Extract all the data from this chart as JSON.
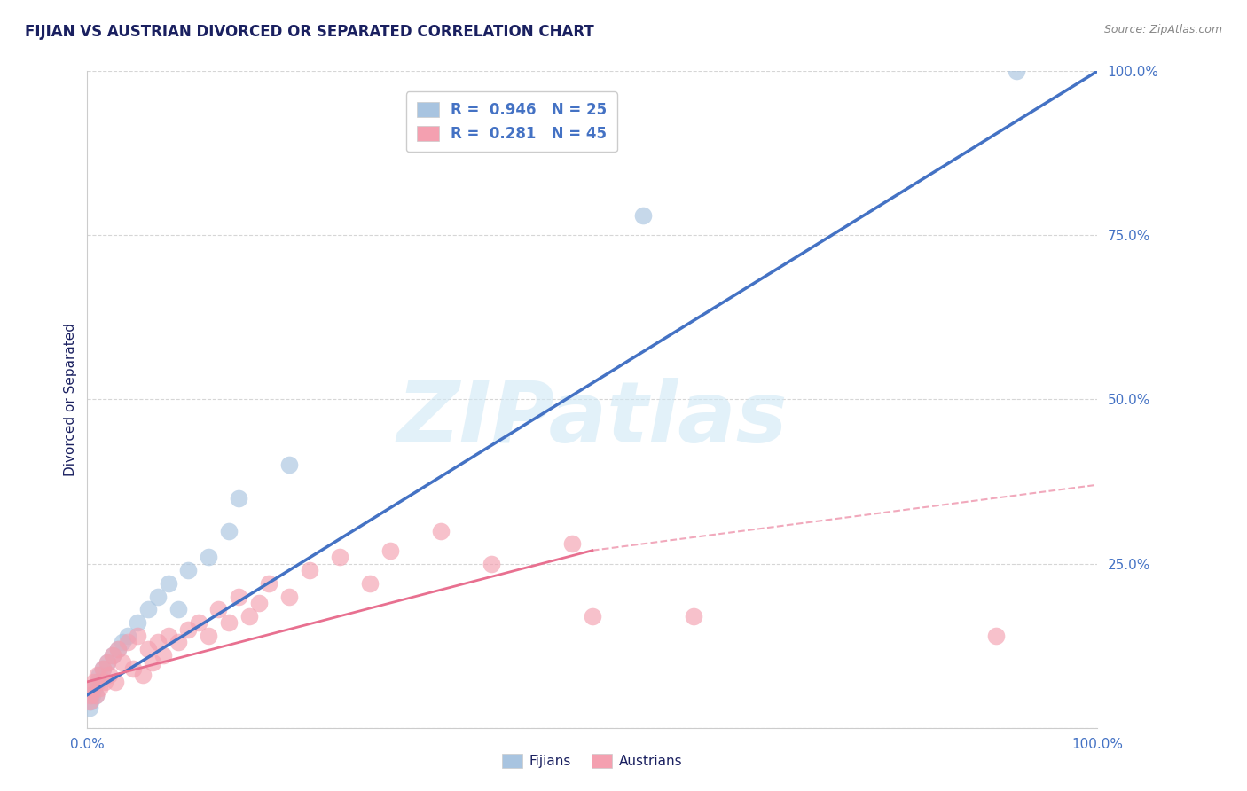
{
  "title": "FIJIAN VS AUSTRIAN DIVORCED OR SEPARATED CORRELATION CHART",
  "source_text": "Source: ZipAtlas.com",
  "ylabel": "Divorced or Separated",
  "fijian_R": 0.946,
  "fijian_N": 25,
  "austrian_R": 0.281,
  "austrian_N": 45,
  "fijian_color": "#a8c4e0",
  "austrian_color": "#f4a0b0",
  "fijian_line_color": "#4472c4",
  "austrian_line_color": "#e87090",
  "background_color": "#ffffff",
  "grid_color": "#cccccc",
  "title_color": "#1a2060",
  "axis_label_color": "#1a2060",
  "tick_label_color": "#4472c4",
  "watermark_color": "#d0e8f5",
  "watermark_text": "ZIPatlas",
  "fijian_points_x": [
    0.2,
    0.3,
    0.5,
    0.7,
    0.8,
    1.0,
    1.2,
    1.5,
    2.0,
    2.5,
    3.0,
    3.5,
    4.0,
    5.0,
    6.0,
    7.0,
    8.0,
    9.0,
    10.0,
    12.0,
    14.0,
    15.0,
    20.0,
    55.0,
    92.0
  ],
  "fijian_points_y": [
    3.0,
    4.0,
    5.0,
    6.0,
    5.0,
    7.0,
    8.0,
    9.0,
    10.0,
    11.0,
    12.0,
    13.0,
    14.0,
    16.0,
    18.0,
    20.0,
    22.0,
    18.0,
    24.0,
    26.0,
    30.0,
    35.0,
    40.0,
    78.0,
    100.0
  ],
  "austrian_points_x": [
    0.2,
    0.3,
    0.5,
    0.7,
    0.8,
    1.0,
    1.2,
    1.5,
    1.7,
    2.0,
    2.2,
    2.5,
    2.8,
    3.0,
    3.5,
    4.0,
    4.5,
    5.0,
    5.5,
    6.0,
    6.5,
    7.0,
    7.5,
    8.0,
    9.0,
    10.0,
    11.0,
    12.0,
    13.0,
    14.0,
    15.0,
    16.0,
    17.0,
    18.0,
    20.0,
    22.0,
    25.0,
    28.0,
    30.0,
    35.0,
    40.0,
    48.0,
    50.0,
    60.0,
    90.0
  ],
  "austrian_points_y": [
    4.0,
    5.0,
    6.0,
    7.0,
    5.0,
    8.0,
    6.0,
    9.0,
    7.0,
    10.0,
    8.0,
    11.0,
    7.0,
    12.0,
    10.0,
    13.0,
    9.0,
    14.0,
    8.0,
    12.0,
    10.0,
    13.0,
    11.0,
    14.0,
    13.0,
    15.0,
    16.0,
    14.0,
    18.0,
    16.0,
    20.0,
    17.0,
    19.0,
    22.0,
    20.0,
    24.0,
    26.0,
    22.0,
    27.0,
    30.0,
    25.0,
    28.0,
    17.0,
    17.0,
    14.0
  ],
  "xlim": [
    0.0,
    100.0
  ],
  "ylim": [
    0.0,
    100.0
  ],
  "xticks": [
    0.0,
    25.0,
    50.0,
    75.0,
    100.0
  ],
  "yticks": [
    0.0,
    25.0,
    50.0,
    75.0,
    100.0
  ],
  "xtick_labels": [
    "0.0%",
    "",
    "",
    "",
    "100.0%"
  ],
  "ytick_labels": [
    "",
    "25.0%",
    "50.0%",
    "75.0%",
    "100.0%"
  ],
  "fijian_line_x0": 0.0,
  "fijian_line_y0": 5.0,
  "fijian_line_x1": 100.0,
  "fijian_line_y1": 100.0,
  "austrian_solid_x0": 0.0,
  "austrian_solid_y0": 7.0,
  "austrian_solid_x1": 50.0,
  "austrian_solid_y1": 27.0,
  "austrian_dash_x0": 50.0,
  "austrian_dash_y0": 27.0,
  "austrian_dash_x1": 100.0,
  "austrian_dash_y1": 37.0
}
